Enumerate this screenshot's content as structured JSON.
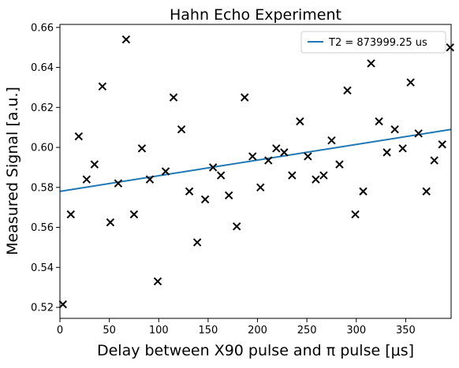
{
  "chart_data": {
    "type": "scatter",
    "title": "Hahn Echo Experiment",
    "xlabel": "Delay between X90 pulse and π pulse [μs]",
    "ylabel": "Measured Signal [a.u.]",
    "xlim": [
      0,
      396
    ],
    "ylim": [
      0.5145,
      0.6615
    ],
    "x_ticks": [
      "0",
      "50",
      "100",
      "150",
      "200",
      "250",
      "300",
      "350"
    ],
    "y_ticks": [
      "0.52",
      "0.54",
      "0.56",
      "0.58",
      "0.60",
      "0.62",
      "0.64",
      "0.66"
    ],
    "grid": false,
    "legend_position": "top-right",
    "series": [
      {
        "kind": "scatter",
        "marker": "x",
        "color": "#000000",
        "x": [
          3,
          11,
          19,
          27,
          35,
          43,
          51,
          59,
          67,
          75,
          83,
          91,
          99,
          107,
          115,
          123,
          131,
          139,
          147,
          155,
          163,
          171,
          179,
          187,
          195,
          203,
          211,
          219,
          227,
          235,
          243,
          251,
          259,
          267,
          275,
          283,
          291,
          299,
          307,
          315,
          323,
          331,
          339,
          347,
          355,
          363,
          371,
          379,
          387,
          395
        ],
        "y": [
          0.5215,
          0.5665,
          0.6055,
          0.584,
          0.5915,
          0.6305,
          0.5625,
          0.582,
          0.654,
          0.5665,
          0.5995,
          0.584,
          0.533,
          0.588,
          0.625,
          0.609,
          0.578,
          0.5525,
          0.574,
          0.59,
          0.586,
          0.576,
          0.5605,
          0.625,
          0.5955,
          0.58,
          0.5935,
          0.5995,
          0.5975,
          0.586,
          0.613,
          0.5955,
          0.584,
          0.586,
          0.6035,
          0.5915,
          0.6285,
          0.5665,
          0.578,
          0.642,
          0.613,
          0.5975,
          0.609,
          0.5995,
          0.6325,
          0.607,
          0.578,
          0.5935,
          0.6015,
          0.65
        ]
      },
      {
        "kind": "line",
        "name": "T2 = 873999.25 us",
        "color": "#1f77b4",
        "x": [
          0,
          396
        ],
        "y": [
          0.578,
          0.609
        ]
      }
    ]
  }
}
